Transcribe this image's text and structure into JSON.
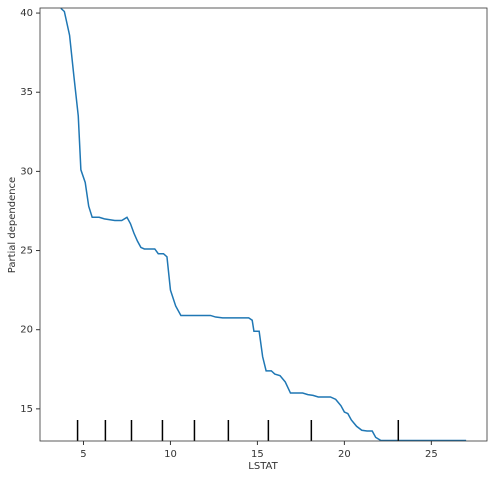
{
  "chart_data": {
    "type": "line",
    "x_label": "LSTAT",
    "y_label": "Partial dependence",
    "x": [
      3.7,
      3.9,
      4.2,
      4.45,
      4.7,
      4.85,
      5.1,
      5.3,
      5.5,
      5.9,
      6.2,
      6.8,
      7.2,
      7.5,
      7.7,
      7.9,
      8.1,
      8.3,
      8.5,
      9.1,
      9.3,
      9.6,
      9.8,
      10.0,
      10.3,
      10.6,
      11.0,
      12.0,
      12.3,
      12.6,
      13.0,
      14.5,
      14.7,
      14.8,
      15.1,
      15.3,
      15.5,
      15.8,
      16.0,
      16.3,
      16.6,
      16.9,
      17.6,
      17.9,
      18.2,
      18.5,
      19.2,
      19.5,
      19.8,
      20.0,
      20.2,
      20.4,
      20.7,
      21.0,
      21.3,
      21.6,
      21.8,
      22.1,
      27.0
    ],
    "series": [
      {
        "color": "#1f77b4",
        "values": [
          40.3,
          40.1,
          38.6,
          36.0,
          33.5,
          30.1,
          29.3,
          27.8,
          27.1,
          27.1,
          27.0,
          26.9,
          26.9,
          27.1,
          26.7,
          26.1,
          25.6,
          25.2,
          25.1,
          25.1,
          24.8,
          24.8,
          24.6,
          22.5,
          21.5,
          20.9,
          20.9,
          20.9,
          20.9,
          20.8,
          20.75,
          20.75,
          20.6,
          19.9,
          19.9,
          18.3,
          17.4,
          17.4,
          17.2,
          17.1,
          16.7,
          16.0,
          16.0,
          15.9,
          15.85,
          15.75,
          15.75,
          15.6,
          15.2,
          14.8,
          14.7,
          14.3,
          13.9,
          13.65,
          13.6,
          13.6,
          13.2,
          13.0,
          13.0
        ]
      }
    ],
    "deciles": [
      4.66,
      6.26,
      7.76,
      9.54,
      11.38,
      13.33,
      15.63,
      18.1,
      23.1
    ],
    "deciles_color": "#000000",
    "xlim": [
      2.5,
      28.2
    ],
    "ylim": [
      12.97,
      40.32
    ],
    "xticks": [
      5,
      10,
      15,
      20,
      25
    ],
    "yticks": [
      15,
      20,
      25,
      30,
      35,
      40
    ],
    "grid": false
  }
}
